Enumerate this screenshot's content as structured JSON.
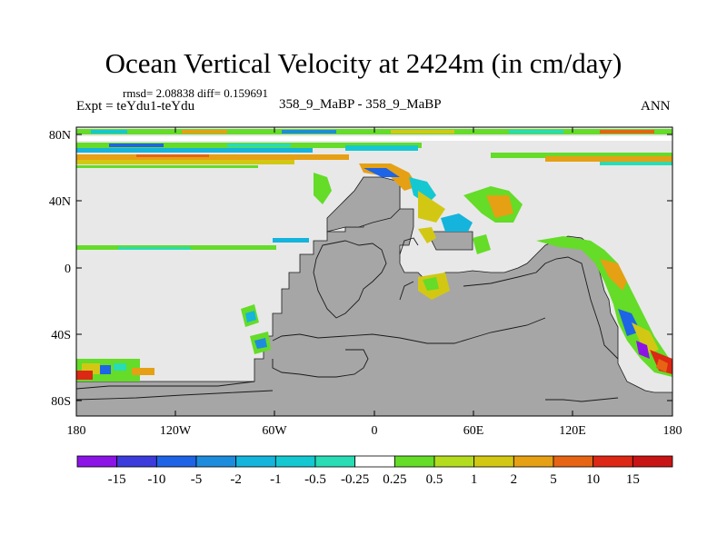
{
  "title": "Ocean Vertical Velocity at 2424m (in cm/day)",
  "stats": "rmsd= 2.08838  diff= 0.159691",
  "expt": "Expt = teYdu1-teYdu",
  "runs": "358_9_MaBP - 358_9_MaBP",
  "season": "ANN",
  "colors": {
    "land": "#a6a6a6",
    "near_zero": "#e8e8e8",
    "coast": "#1a1a1a"
  },
  "y_ticks": [
    "80N",
    "40N",
    "0",
    "40S",
    "80S"
  ],
  "x_ticks": [
    "180",
    "120W",
    "60W",
    "0",
    "60E",
    "120E",
    "180"
  ],
  "colorbar": {
    "labels": [
      "-15",
      "-10",
      "-5",
      "-2",
      "-1",
      "-0.5",
      "-0.25",
      "0.25",
      "0.5",
      "1",
      "2",
      "5",
      "10",
      "15"
    ],
    "colors": [
      "#8c14e6",
      "#3c3cdc",
      "#1e64e6",
      "#1e8cdc",
      "#14b4dc",
      "#14c8d2",
      "#28dcb4",
      "#ffffff",
      "#64dc28",
      "#b4dc1e",
      "#d2c814",
      "#e6a014",
      "#e66414",
      "#dc2814",
      "#c81414"
    ]
  }
}
